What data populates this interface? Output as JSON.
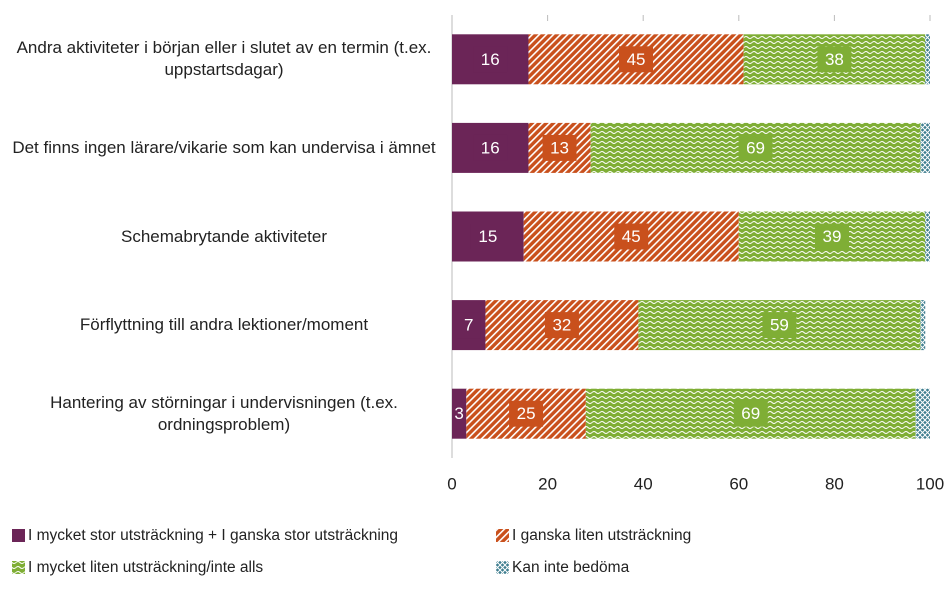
{
  "chart_data": {
    "type": "stacked-barh",
    "categories": [
      "Andra aktiviteter i början eller i slutet av en termin (t.ex. uppstartsdagar)",
      "Det finns ingen lärare/vikarie som kan undervisa i ämnet",
      "Schemabrytande aktiviteter",
      "Förflyttning till andra lektioner/moment",
      "Hantering av störningar i undervisningen (t.ex. ordningsproblem)"
    ],
    "series": [
      {
        "name": "I mycket stor utsträckning + I ganska stor utsträckning",
        "color": "#6b2557",
        "pattern": "solid",
        "data_labels": true,
        "values": [
          16,
          16,
          15,
          7,
          3
        ]
      },
      {
        "name": "I ganska liten utsträckning",
        "color": "#c9501c",
        "pattern": "hatch",
        "data_labels": true,
        "values": [
          45,
          13,
          45,
          32,
          25
        ]
      },
      {
        "name": "I mycket liten utsträckning/inte alls",
        "color": "#7fae35",
        "pattern": "wave",
        "data_labels": true,
        "values": [
          38,
          69,
          39,
          59,
          69
        ]
      },
      {
        "name": "Kan inte bedöma",
        "color": "#3f7e8f",
        "pattern": "cross",
        "data_labels": false,
        "values": [
          1,
          2,
          1,
          1,
          3
        ]
      }
    ],
    "xlim": [
      0,
      100
    ],
    "xticks": [
      0,
      20,
      40,
      60,
      80,
      100
    ]
  }
}
